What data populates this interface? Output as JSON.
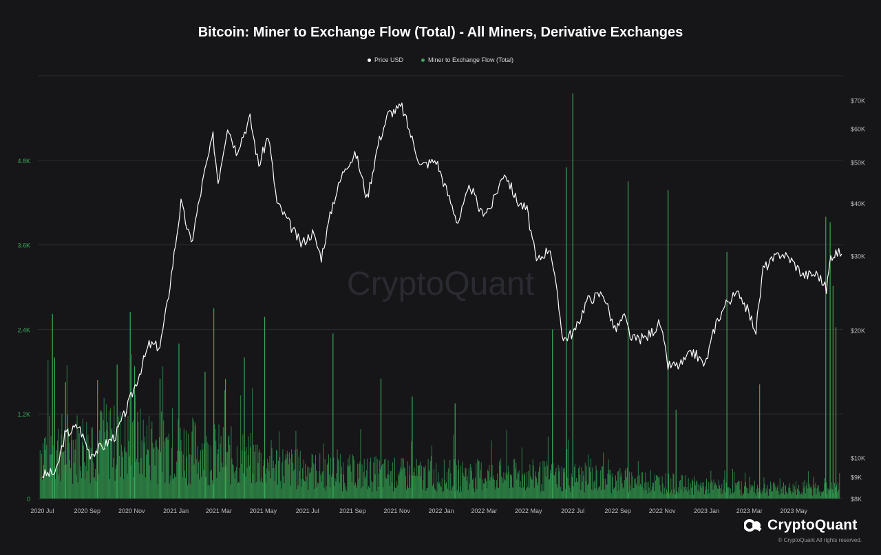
{
  "chart_data": {
    "type": "bar+line",
    "title": "Bitcoin: Miner to Exchange Flow (Total) - All Miners, Derivative Exchanges",
    "watermark": "CryptoQuant",
    "legend": [
      {
        "label": "Price USD",
        "color": "#ffffff"
      },
      {
        "label": "Miner to Exchange Flow (Total)",
        "color": "#3aa757"
      }
    ],
    "x_range": [
      "2020-06-25",
      "2023-07-08"
    ],
    "x_ticks": [
      "2020 Jul",
      "2020 Sep",
      "2020 Nov",
      "2021 Jan",
      "2021 Mar",
      "2021 May",
      "2021 Jul",
      "2021 Sep",
      "2021 Nov",
      "2022 Jan",
      "2022 Mar",
      "2022 May",
      "2022 Jul",
      "2022 Sep",
      "2022 Nov",
      "2023 Jan",
      "2023 Mar",
      "2023 May"
    ],
    "y_left": {
      "ticks": [
        "0",
        "1.2K",
        "2.4K",
        "3.6K",
        "4.8K"
      ],
      "values": [
        0,
        1200,
        2400,
        3600,
        4800
      ],
      "range": [
        0,
        6000
      ],
      "color": "#3aa757"
    },
    "y_right": {
      "ticks": [
        "$8K",
        "$9K",
        "$10K",
        "$20K",
        "$30K",
        "$40K",
        "$50K",
        "$60K",
        "$70K"
      ],
      "values": [
        8000,
        9000,
        10000,
        20000,
        30000,
        40000,
        50000,
        60000,
        70000
      ],
      "scale": "log",
      "range": [
        8000,
        80000
      ]
    },
    "grid": true,
    "legend_position": "top-center",
    "price_series": {
      "name": "Price USD",
      "points": [
        [
          "2020-07-01",
          9100
        ],
        [
          "2020-07-20",
          9200
        ],
        [
          "2020-08-01",
          11300
        ],
        [
          "2020-08-20",
          11900
        ],
        [
          "2020-09-05",
          10200
        ],
        [
          "2020-09-25",
          10700
        ],
        [
          "2020-10-10",
          11300
        ],
        [
          "2020-10-25",
          13000
        ],
        [
          "2020-11-10",
          15500
        ],
        [
          "2020-11-25",
          18500
        ],
        [
          "2020-12-10",
          18300
        ],
        [
          "2020-12-20",
          23000
        ],
        [
          "2021-01-08",
          40000
        ],
        [
          "2021-01-22",
          32000
        ],
        [
          "2021-02-08",
          46000
        ],
        [
          "2021-02-21",
          57500
        ],
        [
          "2021-02-28",
          45000
        ],
        [
          "2021-03-13",
          61000
        ],
        [
          "2021-03-25",
          53000
        ],
        [
          "2021-04-13",
          63500
        ],
        [
          "2021-04-25",
          49000
        ],
        [
          "2021-05-08",
          58000
        ],
        [
          "2021-05-20",
          40000
        ],
        [
          "2021-06-05",
          36000
        ],
        [
          "2021-06-22",
          32000
        ],
        [
          "2021-07-08",
          34000
        ],
        [
          "2021-07-20",
          29800
        ],
        [
          "2021-08-05",
          40000
        ],
        [
          "2021-08-22",
          49000
        ],
        [
          "2021-09-06",
          52000
        ],
        [
          "2021-09-21",
          41000
        ],
        [
          "2021-10-06",
          55000
        ],
        [
          "2021-10-20",
          65000
        ],
        [
          "2021-11-08",
          67500
        ],
        [
          "2021-11-20",
          58000
        ],
        [
          "2021-12-04",
          49000
        ],
        [
          "2021-12-25",
          50500
        ],
        [
          "2022-01-10",
          42000
        ],
        [
          "2022-01-24",
          36000
        ],
        [
          "2022-02-10",
          44000
        ],
        [
          "2022-02-24",
          38000
        ],
        [
          "2022-03-10",
          39000
        ],
        [
          "2022-03-29",
          47500
        ],
        [
          "2022-04-15",
          40500
        ],
        [
          "2022-04-29",
          38500
        ],
        [
          "2022-05-12",
          29000
        ],
        [
          "2022-05-31",
          31500
        ],
        [
          "2022-06-12",
          22500
        ],
        [
          "2022-06-18",
          19000
        ],
        [
          "2022-07-05",
          20000
        ],
        [
          "2022-07-20",
          23500
        ],
        [
          "2022-08-12",
          24500
        ],
        [
          "2022-08-28",
          20000
        ],
        [
          "2022-09-10",
          21500
        ],
        [
          "2022-09-20",
          19000
        ],
        [
          "2022-10-10",
          19200
        ],
        [
          "2022-10-29",
          20800
        ],
        [
          "2022-11-09",
          16500
        ],
        [
          "2022-11-25",
          16500
        ],
        [
          "2022-12-14",
          17800
        ],
        [
          "2022-12-30",
          16500
        ],
        [
          "2023-01-14",
          20800
        ],
        [
          "2023-01-30",
          23500
        ],
        [
          "2023-02-16",
          24500
        ],
        [
          "2023-03-10",
          20000
        ],
        [
          "2023-03-20",
          28000
        ],
        [
          "2023-04-14",
          30500
        ],
        [
          "2023-04-28",
          29300
        ],
        [
          "2023-05-14",
          27000
        ],
        [
          "2023-06-03",
          27200
        ],
        [
          "2023-06-15",
          25000
        ],
        [
          "2023-06-21",
          30000
        ],
        [
          "2023-06-28",
          30500
        ],
        [
          "2023-07-06",
          30300
        ]
      ]
    },
    "flow_series": {
      "name": "Miner to Exchange Flow (Total)",
      "spikes": [
        [
          "2020-07-15",
          2620
        ],
        [
          "2020-07-18",
          2000
        ],
        [
          "2020-08-02",
          1650
        ],
        [
          "2020-09-15",
          1680
        ],
        [
          "2020-10-12",
          1900
        ],
        [
          "2020-10-30",
          2650
        ],
        [
          "2020-11-05",
          1880
        ],
        [
          "2020-12-10",
          1700
        ],
        [
          "2021-01-05",
          2200
        ],
        [
          "2021-02-10",
          1800
        ],
        [
          "2021-02-22",
          2700
        ],
        [
          "2021-03-10",
          1700
        ],
        [
          "2021-04-05",
          2000
        ],
        [
          "2021-05-03",
          2580
        ],
        [
          "2021-08-05",
          2340
        ],
        [
          "2021-10-10",
          1700
        ],
        [
          "2021-11-22",
          1450
        ],
        [
          "2022-01-20",
          1350
        ],
        [
          "2022-06-03",
          2400
        ],
        [
          "2022-06-22",
          4700
        ],
        [
          "2022-07-01",
          5750
        ],
        [
          "2022-09-15",
          4500
        ],
        [
          "2022-11-09",
          4380
        ],
        [
          "2022-11-20",
          1260
        ],
        [
          "2023-01-29",
          3500
        ],
        [
          "2023-03-15",
          1620
        ],
        [
          "2023-06-14",
          4000
        ],
        [
          "2023-06-20",
          3920
        ],
        [
          "2023-06-24",
          3020
        ],
        [
          "2023-06-28",
          2430
        ]
      ],
      "baseline_trend": [
        [
          "2020-07",
          750
        ],
        [
          "2020-10",
          860
        ],
        [
          "2021-01",
          780
        ],
        [
          "2021-04",
          620
        ],
        [
          "2021-07",
          420
        ],
        [
          "2021-10",
          380
        ],
        [
          "2022-01",
          350
        ],
        [
          "2022-04",
          360
        ],
        [
          "2022-07",
          330
        ],
        [
          "2022-10",
          270
        ],
        [
          "2023-01",
          180
        ],
        [
          "2023-04",
          150
        ],
        [
          "2023-07",
          150
        ]
      ]
    }
  },
  "footer": {
    "logo_text": "CryptoQuant",
    "copyright": "© CryptoQuant All rights reserved."
  }
}
